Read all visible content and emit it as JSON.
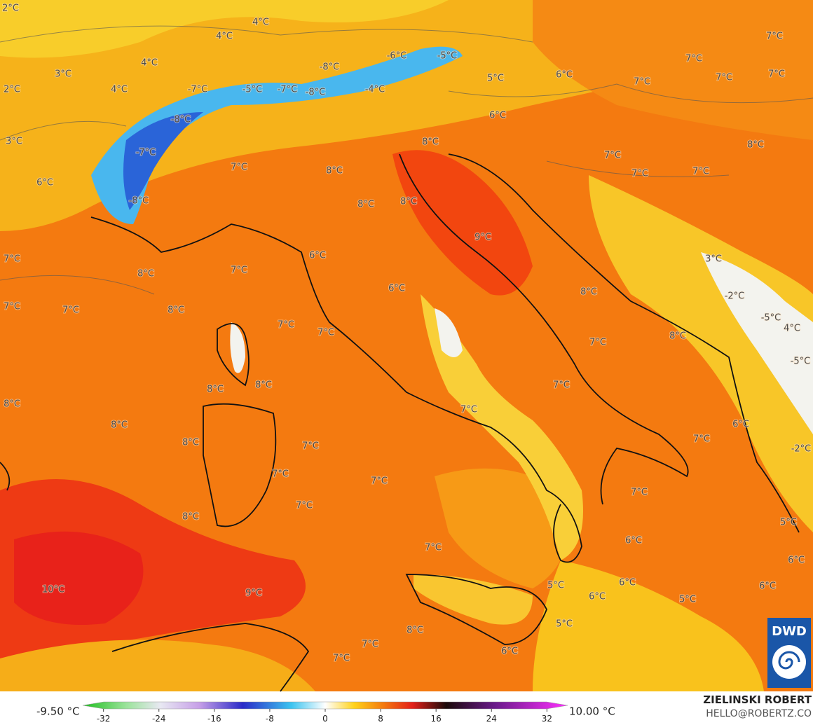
{
  "map": {
    "labels": [
      "2°C",
      "4°C",
      "4°C",
      "3°C",
      "4°C",
      "2°C",
      "4°C",
      "-7°C",
      "-5°C",
      "-7°C",
      "-8°C",
      "-4°C",
      "-8°C",
      "-6°C",
      "-5°C",
      "5°C",
      "6°C",
      "7°C",
      "7°C",
      "7°C",
      "7°C",
      "7°C",
      "-8°C",
      "3°C",
      "-7°C",
      "8°C",
      "6°C",
      "7°C",
      "8°C",
      "7°C",
      "8°C",
      "7°C",
      "7°C",
      "6°C",
      "-8°C",
      "8°C",
      "8°C",
      "9°C",
      "6°C",
      "3°C",
      "7°C",
      "8°C",
      "7°C",
      "6°C",
      "8°C",
      "7°C",
      "7°C",
      "8°C",
      "7°C",
      "7°C",
      "-2°C",
      "-5°C",
      "4°C",
      "8°C",
      "7°C",
      "-5°C",
      "8°C",
      "8°C",
      "7°C",
      "8°C",
      "8°C",
      "7°C",
      "6°C",
      "7°C",
      "-2°C",
      "8°C",
      "7°C",
      "7°C",
      "7°C",
      "7°C",
      "7°C",
      "8°C",
      "5°C",
      "6°C",
      "7°C",
      "6°C",
      "10°C",
      "9°C",
      "5°C",
      "6°C",
      "6°C",
      "5°C",
      "6°C",
      "5°C",
      "8°C",
      "7°C",
      "7°C",
      "6°C"
    ]
  },
  "legend": {
    "min_label": "-9.50 °C",
    "max_label": "10.00 °C",
    "ticks": [
      -32,
      -24,
      -16,
      -8,
      0,
      8,
      16,
      24,
      32
    ],
    "lim": [
      -35,
      35
    ]
  },
  "credit": {
    "name": "ZIELINSKI ROBERT",
    "email": "HELLO@ROBERTZ.CO"
  },
  "logo": "DWD"
}
